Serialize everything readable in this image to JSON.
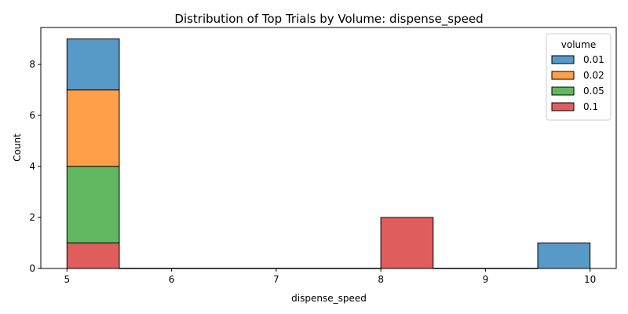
{
  "chart_data": {
    "type": "bar",
    "stacked": true,
    "title": "Distribution of Top Trials by Volume: dispense_speed",
    "xlabel": "dispense_speed",
    "ylabel": "Count",
    "xlim": [
      4.75,
      10.25
    ],
    "ylim": [
      0,
      9.45
    ],
    "xticks": [
      5,
      6,
      7,
      8,
      9,
      10
    ],
    "yticks": [
      0,
      2,
      4,
      6,
      8
    ],
    "bin_edges": [
      5.0,
      5.5,
      6.0,
      6.5,
      7.0,
      7.5,
      8.0,
      8.5,
      9.0,
      9.5,
      10.0
    ],
    "legend": {
      "title": "volume",
      "position": "top-right"
    },
    "series": [
      {
        "name": "0.01",
        "color": "#1f77b4",
        "values": [
          2,
          0,
          0,
          0,
          0,
          0,
          0,
          0,
          0,
          1
        ]
      },
      {
        "name": "0.02",
        "color": "#ff7f0e",
        "values": [
          3,
          0,
          0,
          0,
          0,
          0,
          0,
          0,
          0,
          0
        ]
      },
      {
        "name": "0.05",
        "color": "#2ca02c",
        "values": [
          3,
          0,
          0,
          0,
          0,
          0,
          0,
          0,
          0,
          0
        ]
      },
      {
        "name": "0.1",
        "color": "#d62728",
        "values": [
          1,
          0,
          0,
          0,
          0,
          0,
          2,
          0,
          0,
          0
        ]
      }
    ]
  }
}
